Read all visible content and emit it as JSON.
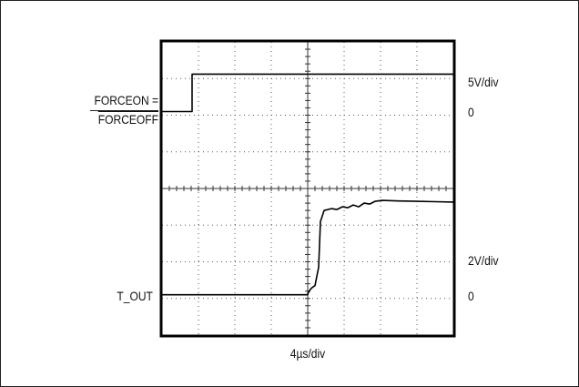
{
  "chart_data": {
    "type": "line",
    "title": "",
    "xlabel": "4µs/div",
    "x_unit_label": "4µs/div",
    "x_divisions": 8,
    "x_range_us": [
      0,
      32
    ],
    "y_divisions": 8,
    "grid": true,
    "channels": [
      {
        "name": "FORCEON = FORCEOFF",
        "label_top": "FORCEON =",
        "label_bottom": "FORCEOFF",
        "scale_label": "5V/div",
        "zero_label": "0",
        "x_us": [
          0,
          3.3,
          3.3,
          12,
          20,
          32
        ],
        "y_v": [
          0,
          0,
          5.1,
          5.1,
          5.1,
          5.1
        ]
      },
      {
        "name": "T_OUT",
        "label": "T_OUT",
        "scale_label": "2V/div",
        "zero_label": "0",
        "x_us": [
          0,
          8,
          16,
          16.05,
          16.3,
          16.5,
          16.8,
          17.2,
          17.4,
          17.8,
          18.6,
          19.2,
          19.8,
          20.4,
          21.0,
          21.6,
          22.2,
          22.8,
          23.4,
          24.2,
          26,
          28,
          30,
          32
        ],
        "y_v": [
          0,
          0,
          0,
          0.1,
          0.3,
          0.4,
          0.5,
          1.5,
          4.0,
          4.6,
          4.7,
          4.65,
          4.8,
          4.75,
          4.9,
          4.8,
          5.0,
          4.95,
          5.1,
          5.15,
          5.12,
          5.1,
          5.08,
          5.06
        ]
      }
    ]
  }
}
